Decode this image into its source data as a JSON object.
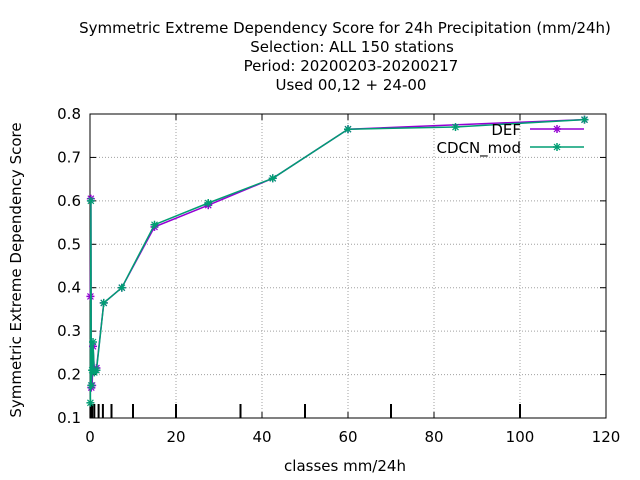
{
  "chart_data": {
    "type": "line",
    "title_lines": [
      "Symmetric Extreme Dependency Score  for 24h Precipitation (mm/24h)",
      "Selection: ALL    150 stations",
      "Period: 20200203-20200217",
      "Used  00,12  + 24-00"
    ],
    "xlabel": "classes mm/24h",
    "ylabel": "Symmetric Extreme Dependency Score",
    "xlim": [
      0,
      120
    ],
    "ylim": [
      0.1,
      0.8
    ],
    "xticks": [
      0,
      20,
      40,
      60,
      80,
      100,
      120
    ],
    "xtick_labels": [
      "0",
      "20",
      "40",
      "60",
      "80",
      "100",
      "120"
    ],
    "yticks": [
      0.1,
      0.2,
      0.3,
      0.4,
      0.5,
      0.6,
      0.7,
      0.8
    ],
    "ytick_labels": [
      "0.1",
      "0.2",
      "0.3",
      "0.4",
      "0.5",
      "0.6",
      "0.7",
      "0.8"
    ],
    "grid": true,
    "legend_position": "top-right",
    "class_marks": [
      0.1,
      0.2,
      0.3,
      0.5,
      1,
      2,
      3,
      5,
      10,
      20,
      35,
      50,
      70,
      100
    ],
    "series": [
      {
        "name": "DEF",
        "color": "#9400d3",
        "x": [
          0.1,
          0.2,
          0.3,
          0.5,
          0.7,
          1,
          1.5,
          3.2,
          7.4,
          15,
          27.5,
          42.5,
          60,
          115
        ],
        "y": [
          0.38,
          0.605,
          0.17,
          0.175,
          0.265,
          0.21,
          0.215,
          0.365,
          0.4,
          0.54,
          0.59,
          0.652,
          0.765,
          0.787
        ]
      },
      {
        "name": "CDCN_mod",
        "color": "#009e73",
        "x": [
          0.1,
          0.2,
          0.3,
          0.5,
          0.7,
          1,
          1.5,
          3.2,
          7.4,
          15,
          27.5,
          42.5,
          60,
          85,
          115
        ],
        "y": [
          0.135,
          0.6,
          0.175,
          0.21,
          0.275,
          0.205,
          0.21,
          0.365,
          0.4,
          0.545,
          0.595,
          0.652,
          0.765,
          0.77,
          0.787
        ]
      }
    ]
  }
}
